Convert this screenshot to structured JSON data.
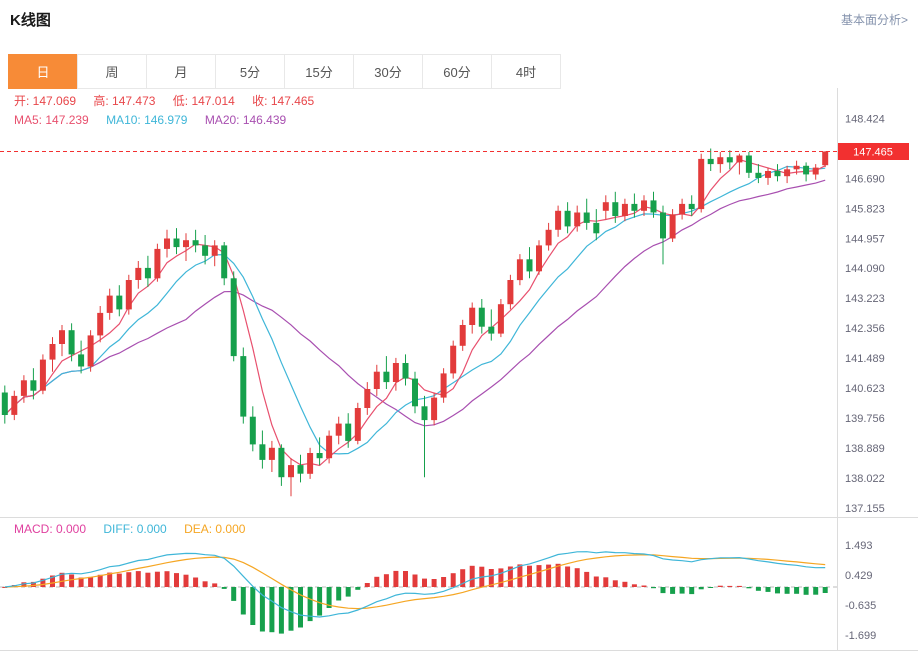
{
  "header": {
    "title": "K线图",
    "analysis_link": "基本面分析>"
  },
  "tabs": [
    {
      "label": "日",
      "active": true
    },
    {
      "label": "周",
      "active": false
    },
    {
      "label": "月",
      "active": false
    },
    {
      "label": "5分",
      "active": false
    },
    {
      "label": "15分",
      "active": false
    },
    {
      "label": "30分",
      "active": false
    },
    {
      "label": "60分",
      "active": false
    },
    {
      "label": "4时",
      "active": false
    }
  ],
  "legend": {
    "ohlc": [
      "开: 147.069",
      "高: 147.473",
      "低: 147.014",
      "收: 147.465"
    ],
    "ma": [
      "MA5: 147.239",
      "MA10: 146.979",
      "MA20: 146.439"
    ],
    "macd": [
      "MACD: 0.000",
      "DIFF: 0.000",
      "DEA: 0.000"
    ]
  },
  "colors": {
    "up": "#e23b3b",
    "down": "#16a04c",
    "ma5": "#e8506e",
    "ma10": "#3fb6d8",
    "ma20": "#a84fb0",
    "diff": "#3fb6d8",
    "dea": "#f5a623",
    "macd_label": "#e0409f",
    "ohlc_text": "#e8464a",
    "accent_red": "#f23030",
    "tab_active": "#f78b37",
    "link": "#8593ad",
    "axis_text": "#667"
  },
  "chart_data": {
    "type": "candlestick+macd",
    "title": "K线图",
    "period_selected": "日",
    "current_price": "147.465",
    "ohlc": {
      "open": 147.069,
      "high": 147.473,
      "low": 147.014,
      "close": 147.465
    },
    "ma_values": {
      "MA5": 147.239,
      "MA10": 146.979,
      "MA20": 146.439
    },
    "macd_values": {
      "MACD": 0.0,
      "DIFF": 0.0,
      "DEA": 0.0
    },
    "main": {
      "ticks": [
        "148.424",
        "146.690",
        "145.823",
        "144.957",
        "144.090",
        "143.223",
        "142.356",
        "141.489",
        "140.623",
        "139.756",
        "138.889",
        "138.022",
        "137.155"
      ],
      "range": [
        136.9,
        149.3
      ],
      "grid": false,
      "legend_position": "top-left",
      "candles": [
        [
          140.5,
          140.7,
          139.6,
          139.85
        ],
        [
          139.85,
          140.55,
          139.7,
          140.4
        ],
        [
          140.4,
          141.0,
          140.2,
          140.85
        ],
        [
          140.85,
          141.2,
          140.3,
          140.55
        ],
        [
          140.55,
          141.6,
          140.45,
          141.45
        ],
        [
          141.45,
          142.1,
          141.1,
          141.9
        ],
        [
          141.9,
          142.45,
          141.55,
          142.3
        ],
        [
          142.3,
          142.5,
          141.4,
          141.6
        ],
        [
          141.6,
          142.0,
          141.05,
          141.25
        ],
        [
          141.25,
          142.3,
          141.1,
          142.15
        ],
        [
          142.15,
          143.0,
          141.95,
          142.8
        ],
        [
          142.8,
          143.5,
          142.6,
          143.3
        ],
        [
          143.3,
          143.6,
          142.7,
          142.9
        ],
        [
          142.9,
          143.9,
          142.75,
          143.75
        ],
        [
          143.75,
          144.3,
          143.5,
          144.1
        ],
        [
          144.1,
          144.45,
          143.55,
          143.8
        ],
        [
          143.8,
          144.8,
          143.7,
          144.65
        ],
        [
          144.65,
          145.2,
          144.4,
          144.95
        ],
        [
          144.95,
          145.25,
          144.5,
          144.7
        ],
        [
          144.7,
          145.1,
          144.3,
          144.9
        ],
        [
          144.9,
          145.2,
          144.55,
          144.75
        ],
        [
          144.75,
          145.05,
          144.2,
          144.45
        ],
        [
          144.45,
          144.9,
          144.15,
          144.75
        ],
        [
          144.75,
          144.85,
          143.6,
          143.8
        ],
        [
          143.8,
          144.0,
          141.4,
          141.55
        ],
        [
          141.55,
          141.8,
          139.6,
          139.8
        ],
        [
          139.8,
          140.1,
          138.8,
          139.0
        ],
        [
          139.0,
          139.4,
          138.3,
          138.55
        ],
        [
          138.55,
          139.1,
          138.2,
          138.9
        ],
        [
          138.9,
          139.0,
          137.8,
          138.05
        ],
        [
          138.05,
          138.6,
          137.5,
          138.4
        ],
        [
          138.4,
          138.7,
          137.9,
          138.15
        ],
        [
          138.15,
          138.9,
          138.0,
          138.75
        ],
        [
          138.75,
          139.2,
          138.4,
          138.6
        ],
        [
          138.6,
          139.4,
          138.45,
          139.25
        ],
        [
          139.25,
          139.8,
          139.0,
          139.6
        ],
        [
          139.6,
          139.9,
          138.9,
          139.1
        ],
        [
          139.1,
          140.2,
          139.0,
          140.05
        ],
        [
          140.05,
          140.8,
          139.85,
          140.6
        ],
        [
          140.6,
          141.3,
          140.4,
          141.1
        ],
        [
          141.1,
          141.55,
          140.6,
          140.8
        ],
        [
          140.8,
          141.5,
          140.55,
          141.35
        ],
        [
          141.35,
          141.6,
          140.7,
          140.9
        ],
        [
          140.9,
          141.1,
          139.9,
          140.1
        ],
        [
          140.1,
          140.4,
          138.05,
          139.7
        ],
        [
          139.7,
          140.5,
          139.55,
          140.35
        ],
        [
          140.35,
          141.2,
          140.2,
          141.05
        ],
        [
          141.05,
          142.0,
          140.9,
          141.85
        ],
        [
          141.85,
          142.6,
          141.7,
          142.45
        ],
        [
          142.45,
          143.1,
          142.2,
          142.95
        ],
        [
          142.95,
          143.2,
          142.2,
          142.4
        ],
        [
          142.4,
          142.9,
          142.0,
          142.2
        ],
        [
          142.2,
          143.2,
          142.1,
          143.05
        ],
        [
          143.05,
          143.9,
          142.9,
          143.75
        ],
        [
          143.75,
          144.5,
          143.6,
          144.35
        ],
        [
          144.35,
          144.7,
          143.8,
          144.0
        ],
        [
          144.0,
          144.9,
          143.9,
          144.75
        ],
        [
          144.75,
          145.4,
          144.6,
          145.2
        ],
        [
          145.2,
          145.9,
          145.0,
          145.75
        ],
        [
          145.75,
          146.0,
          145.1,
          145.3
        ],
        [
          145.3,
          145.9,
          145.15,
          145.7
        ],
        [
          145.7,
          146.1,
          145.2,
          145.4
        ],
        [
          145.4,
          145.8,
          144.9,
          145.1
        ],
        [
          145.75,
          146.2,
          145.5,
          146.0
        ],
        [
          146.0,
          146.3,
          145.4,
          145.6
        ],
        [
          145.6,
          146.1,
          145.45,
          145.95
        ],
        [
          145.95,
          146.25,
          145.55,
          145.75
        ],
        [
          145.75,
          146.2,
          145.6,
          146.05
        ],
        [
          146.05,
          146.3,
          145.55,
          145.7
        ],
        [
          145.7,
          145.9,
          144.2,
          144.95
        ],
        [
          144.95,
          145.8,
          144.85,
          145.65
        ],
        [
          145.65,
          146.1,
          145.5,
          145.95
        ],
        [
          145.95,
          146.2,
          145.6,
          145.8
        ],
        [
          145.8,
          147.4,
          145.7,
          147.25
        ],
        [
          147.25,
          147.55,
          146.9,
          147.1
        ],
        [
          147.1,
          147.45,
          146.85,
          147.3
        ],
        [
          147.3,
          147.5,
          146.95,
          147.15
        ],
        [
          147.15,
          147.4,
          146.8,
          147.35
        ],
        [
          147.35,
          147.45,
          146.7,
          146.85
        ],
        [
          146.85,
          147.1,
          146.55,
          146.7
        ],
        [
          146.7,
          147.0,
          146.5,
          146.9
        ],
        [
          146.9,
          147.1,
          146.6,
          146.75
        ],
        [
          146.75,
          147.05,
          146.55,
          146.95
        ],
        [
          146.95,
          147.2,
          146.8,
          147.05
        ],
        [
          147.05,
          147.15,
          146.6,
          146.8
        ],
        [
          146.8,
          147.1,
          146.65,
          147.0
        ],
        [
          147.069,
          147.473,
          147.014,
          147.465
        ]
      ]
    },
    "macd": {
      "ticks": [
        "1.493",
        "0.429",
        "-0.635",
        "-1.699"
      ],
      "range": [
        -2.3,
        2.3
      ],
      "zero_line": "dashed"
    }
  }
}
